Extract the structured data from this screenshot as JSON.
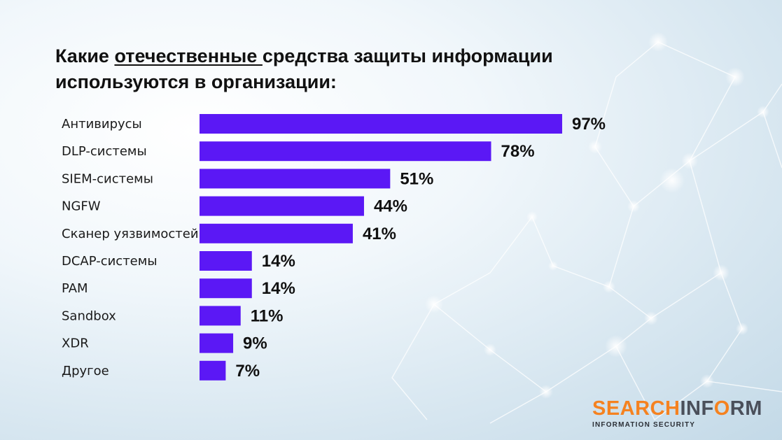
{
  "title": {
    "part1": "Какие ",
    "underlined": "отечественные ",
    "part2": "средства защиты информации используются в организации:"
  },
  "chart_data": {
    "type": "bar",
    "orientation": "horizontal",
    "categories": [
      "Антивирусы",
      "DLP-системы",
      "SIEM-системы",
      "NGFW",
      "Сканер уязвимостей",
      "DCAP-системы",
      "PAM",
      "Sandbox",
      "XDR",
      "Другое"
    ],
    "values": [
      97,
      78,
      51,
      44,
      41,
      14,
      14,
      11,
      9,
      7
    ],
    "value_labels": [
      "97%",
      "78%",
      "51%",
      "44%",
      "41%",
      "14%",
      "14%",
      "11%",
      "9%",
      "7%"
    ],
    "unit": "%",
    "xlim": [
      0,
      100
    ],
    "bar_color": "#5b18f5",
    "grid": false,
    "legend": "none"
  },
  "logo": {
    "part_a": "SEARCH",
    "part_b": "INF",
    "part_c": "O",
    "part_d": "RM",
    "tagline": "INFORMATION SECURITY",
    "accent_color": "#f58220",
    "secondary_color": "#4a4f5a"
  }
}
